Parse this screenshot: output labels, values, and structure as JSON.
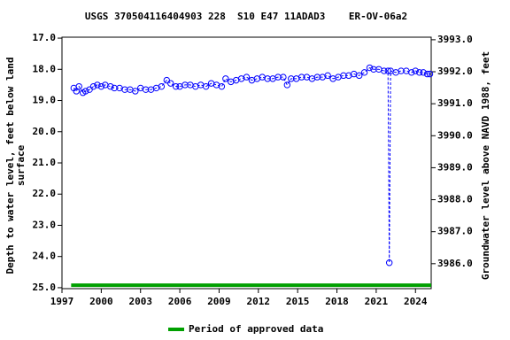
{
  "chart_data": {
    "type": "scatter",
    "title": "USGS 370504116404903 228  S10 E47 11ADAD3    ER-OV-06a2",
    "ylabel_lines": [
      "Depth to water level, feet below land",
      "surface"
    ],
    "y2label": "Groundwater level above NAVD 1988, feet",
    "xlim": [
      1997,
      2025.2
    ],
    "xticks": [
      1997,
      2000,
      2003,
      2006,
      2009,
      2012,
      2015,
      2018,
      2021,
      2024
    ],
    "ylim": [
      16.97,
      25.03
    ],
    "y_inverted": true,
    "yticks": [
      {
        "value": 17,
        "label": "17.0"
      },
      {
        "value": 18,
        "label": "18.0"
      },
      {
        "value": 19,
        "label": "19.0"
      },
      {
        "value": 20,
        "label": "20.0"
      },
      {
        "value": 21,
        "label": "21.0"
      },
      {
        "value": 22,
        "label": "22.0"
      },
      {
        "value": 23,
        "label": "23.0"
      },
      {
        "value": 24,
        "label": "24.0"
      },
      {
        "value": 25,
        "label": "25.0"
      }
    ],
    "y2lim": [
      3985.22,
      3993.08
    ],
    "y2ticks": [
      {
        "value": 3986,
        "label": "3986.0"
      },
      {
        "value": 3987,
        "label": "3987.0"
      },
      {
        "value": 3988,
        "label": "3988.0"
      },
      {
        "value": 3989,
        "label": "3989.0"
      },
      {
        "value": 3990,
        "label": "3990.0"
      },
      {
        "value": 3991,
        "label": "3991.0"
      },
      {
        "value": 3992,
        "label": "3992.0"
      },
      {
        "value": 3993,
        "label": "3993.0"
      }
    ],
    "series": [
      {
        "color": "#0000ff",
        "x": [
          1997.9,
          1998.1,
          1998.3,
          1998.6,
          1998.8,
          1999.1,
          1999.4,
          1999.7,
          2000.0,
          2000.3,
          2000.7,
          2001.0,
          2001.4,
          2001.8,
          2002.2,
          2002.6,
          2003.0,
          2003.4,
          2003.8,
          2004.2,
          2004.6,
          2005.0,
          2005.3,
          2005.7,
          2006.0,
          2006.4,
          2006.8,
          2007.2,
          2007.6,
          2008.0,
          2008.4,
          2008.8,
          2009.2,
          2009.5,
          2009.9,
          2010.3,
          2010.7,
          2011.1,
          2011.5,
          2011.9,
          2012.3,
          2012.7,
          2013.1,
          2013.5,
          2013.9,
          2014.2,
          2014.5,
          2014.9,
          2015.3,
          2015.7,
          2016.1,
          2016.5,
          2016.9,
          2017.3,
          2017.7,
          2018.1,
          2018.5,
          2018.9,
          2019.3,
          2019.7,
          2020.1,
          2020.5,
          2020.8,
          2021.2,
          2021.6,
          2021.9,
          2022.0,
          2022.1,
          2022.5,
          2022.9,
          2023.3,
          2023.7,
          2024.0,
          2024.3,
          2024.6,
          2024.9,
          2025.1
        ],
        "values": [
          18.6,
          18.7,
          18.55,
          18.75,
          18.7,
          18.65,
          18.55,
          18.5,
          18.55,
          18.5,
          18.55,
          18.6,
          18.6,
          18.65,
          18.65,
          18.7,
          18.6,
          18.65,
          18.65,
          18.6,
          18.55,
          18.35,
          18.45,
          18.55,
          18.55,
          18.5,
          18.5,
          18.55,
          18.5,
          18.55,
          18.45,
          18.5,
          18.55,
          18.3,
          18.4,
          18.35,
          18.3,
          18.25,
          18.35,
          18.3,
          18.25,
          18.3,
          18.3,
          18.25,
          18.25,
          18.5,
          18.3,
          18.3,
          18.25,
          18.25,
          18.3,
          18.25,
          18.25,
          18.2,
          18.3,
          18.25,
          18.2,
          18.2,
          18.15,
          18.2,
          18.1,
          17.95,
          18.0,
          18.0,
          18.05,
          18.05,
          24.2,
          18.05,
          18.1,
          18.05,
          18.05,
          18.1,
          18.05,
          18.1,
          18.1,
          18.15,
          18.15
        ]
      }
    ],
    "approved_periods": [
      {
        "name": "Period of approved data",
        "color": "#00a000",
        "start": 1997.7,
        "end": 2025.2,
        "depth": 24.95
      }
    ]
  }
}
